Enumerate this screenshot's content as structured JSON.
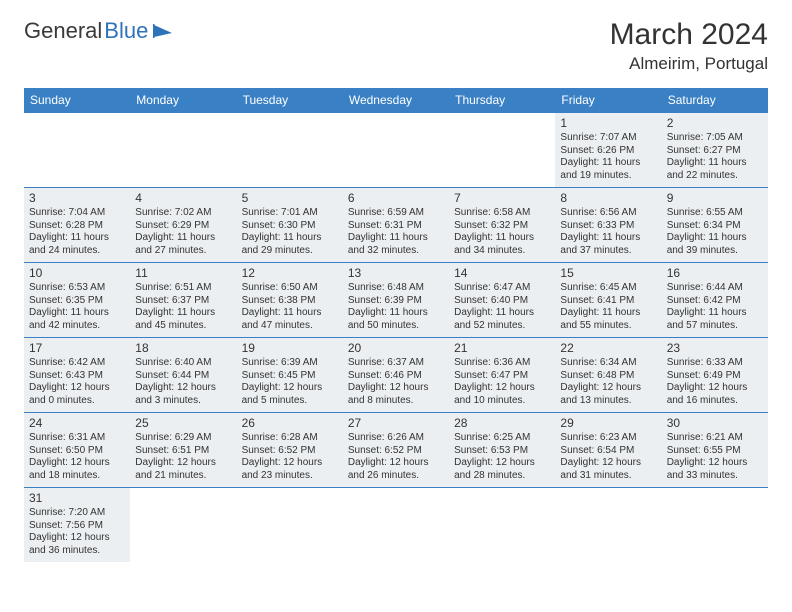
{
  "colors": {
    "header_bg": "#3a80c4",
    "header_text": "#ffffff",
    "cell_bg": "#eceff1",
    "cell_border": "#3a80c4",
    "text": "#333333",
    "page_bg": "#ffffff"
  },
  "logo": {
    "general": "General",
    "blue": "Blue"
  },
  "title": "March 2024",
  "location": "Almeirim, Portugal",
  "weekdays": [
    "Sunday",
    "Monday",
    "Tuesday",
    "Wednesday",
    "Thursday",
    "Friday",
    "Saturday"
  ],
  "weeks": [
    [
      null,
      null,
      null,
      null,
      null,
      {
        "d": "1",
        "sr": "Sunrise: 7:07 AM",
        "ss": "Sunset: 6:26 PM",
        "dl1": "Daylight: 11 hours",
        "dl2": "and 19 minutes."
      },
      {
        "d": "2",
        "sr": "Sunrise: 7:05 AM",
        "ss": "Sunset: 6:27 PM",
        "dl1": "Daylight: 11 hours",
        "dl2": "and 22 minutes."
      }
    ],
    [
      {
        "d": "3",
        "sr": "Sunrise: 7:04 AM",
        "ss": "Sunset: 6:28 PM",
        "dl1": "Daylight: 11 hours",
        "dl2": "and 24 minutes."
      },
      {
        "d": "4",
        "sr": "Sunrise: 7:02 AM",
        "ss": "Sunset: 6:29 PM",
        "dl1": "Daylight: 11 hours",
        "dl2": "and 27 minutes."
      },
      {
        "d": "5",
        "sr": "Sunrise: 7:01 AM",
        "ss": "Sunset: 6:30 PM",
        "dl1": "Daylight: 11 hours",
        "dl2": "and 29 minutes."
      },
      {
        "d": "6",
        "sr": "Sunrise: 6:59 AM",
        "ss": "Sunset: 6:31 PM",
        "dl1": "Daylight: 11 hours",
        "dl2": "and 32 minutes."
      },
      {
        "d": "7",
        "sr": "Sunrise: 6:58 AM",
        "ss": "Sunset: 6:32 PM",
        "dl1": "Daylight: 11 hours",
        "dl2": "and 34 minutes."
      },
      {
        "d": "8",
        "sr": "Sunrise: 6:56 AM",
        "ss": "Sunset: 6:33 PM",
        "dl1": "Daylight: 11 hours",
        "dl2": "and 37 minutes."
      },
      {
        "d": "9",
        "sr": "Sunrise: 6:55 AM",
        "ss": "Sunset: 6:34 PM",
        "dl1": "Daylight: 11 hours",
        "dl2": "and 39 minutes."
      }
    ],
    [
      {
        "d": "10",
        "sr": "Sunrise: 6:53 AM",
        "ss": "Sunset: 6:35 PM",
        "dl1": "Daylight: 11 hours",
        "dl2": "and 42 minutes."
      },
      {
        "d": "11",
        "sr": "Sunrise: 6:51 AM",
        "ss": "Sunset: 6:37 PM",
        "dl1": "Daylight: 11 hours",
        "dl2": "and 45 minutes."
      },
      {
        "d": "12",
        "sr": "Sunrise: 6:50 AM",
        "ss": "Sunset: 6:38 PM",
        "dl1": "Daylight: 11 hours",
        "dl2": "and 47 minutes."
      },
      {
        "d": "13",
        "sr": "Sunrise: 6:48 AM",
        "ss": "Sunset: 6:39 PM",
        "dl1": "Daylight: 11 hours",
        "dl2": "and 50 minutes."
      },
      {
        "d": "14",
        "sr": "Sunrise: 6:47 AM",
        "ss": "Sunset: 6:40 PM",
        "dl1": "Daylight: 11 hours",
        "dl2": "and 52 minutes."
      },
      {
        "d": "15",
        "sr": "Sunrise: 6:45 AM",
        "ss": "Sunset: 6:41 PM",
        "dl1": "Daylight: 11 hours",
        "dl2": "and 55 minutes."
      },
      {
        "d": "16",
        "sr": "Sunrise: 6:44 AM",
        "ss": "Sunset: 6:42 PM",
        "dl1": "Daylight: 11 hours",
        "dl2": "and 57 minutes."
      }
    ],
    [
      {
        "d": "17",
        "sr": "Sunrise: 6:42 AM",
        "ss": "Sunset: 6:43 PM",
        "dl1": "Daylight: 12 hours",
        "dl2": "and 0 minutes."
      },
      {
        "d": "18",
        "sr": "Sunrise: 6:40 AM",
        "ss": "Sunset: 6:44 PM",
        "dl1": "Daylight: 12 hours",
        "dl2": "and 3 minutes."
      },
      {
        "d": "19",
        "sr": "Sunrise: 6:39 AM",
        "ss": "Sunset: 6:45 PM",
        "dl1": "Daylight: 12 hours",
        "dl2": "and 5 minutes."
      },
      {
        "d": "20",
        "sr": "Sunrise: 6:37 AM",
        "ss": "Sunset: 6:46 PM",
        "dl1": "Daylight: 12 hours",
        "dl2": "and 8 minutes."
      },
      {
        "d": "21",
        "sr": "Sunrise: 6:36 AM",
        "ss": "Sunset: 6:47 PM",
        "dl1": "Daylight: 12 hours",
        "dl2": "and 10 minutes."
      },
      {
        "d": "22",
        "sr": "Sunrise: 6:34 AM",
        "ss": "Sunset: 6:48 PM",
        "dl1": "Daylight: 12 hours",
        "dl2": "and 13 minutes."
      },
      {
        "d": "23",
        "sr": "Sunrise: 6:33 AM",
        "ss": "Sunset: 6:49 PM",
        "dl1": "Daylight: 12 hours",
        "dl2": "and 16 minutes."
      }
    ],
    [
      {
        "d": "24",
        "sr": "Sunrise: 6:31 AM",
        "ss": "Sunset: 6:50 PM",
        "dl1": "Daylight: 12 hours",
        "dl2": "and 18 minutes."
      },
      {
        "d": "25",
        "sr": "Sunrise: 6:29 AM",
        "ss": "Sunset: 6:51 PM",
        "dl1": "Daylight: 12 hours",
        "dl2": "and 21 minutes."
      },
      {
        "d": "26",
        "sr": "Sunrise: 6:28 AM",
        "ss": "Sunset: 6:52 PM",
        "dl1": "Daylight: 12 hours",
        "dl2": "and 23 minutes."
      },
      {
        "d": "27",
        "sr": "Sunrise: 6:26 AM",
        "ss": "Sunset: 6:52 PM",
        "dl1": "Daylight: 12 hours",
        "dl2": "and 26 minutes."
      },
      {
        "d": "28",
        "sr": "Sunrise: 6:25 AM",
        "ss": "Sunset: 6:53 PM",
        "dl1": "Daylight: 12 hours",
        "dl2": "and 28 minutes."
      },
      {
        "d": "29",
        "sr": "Sunrise: 6:23 AM",
        "ss": "Sunset: 6:54 PM",
        "dl1": "Daylight: 12 hours",
        "dl2": "and 31 minutes."
      },
      {
        "d": "30",
        "sr": "Sunrise: 6:21 AM",
        "ss": "Sunset: 6:55 PM",
        "dl1": "Daylight: 12 hours",
        "dl2": "and 33 minutes."
      }
    ],
    [
      {
        "d": "31",
        "sr": "Sunrise: 7:20 AM",
        "ss": "Sunset: 7:56 PM",
        "dl1": "Daylight: 12 hours",
        "dl2": "and 36 minutes."
      },
      null,
      null,
      null,
      null,
      null,
      null
    ]
  ]
}
